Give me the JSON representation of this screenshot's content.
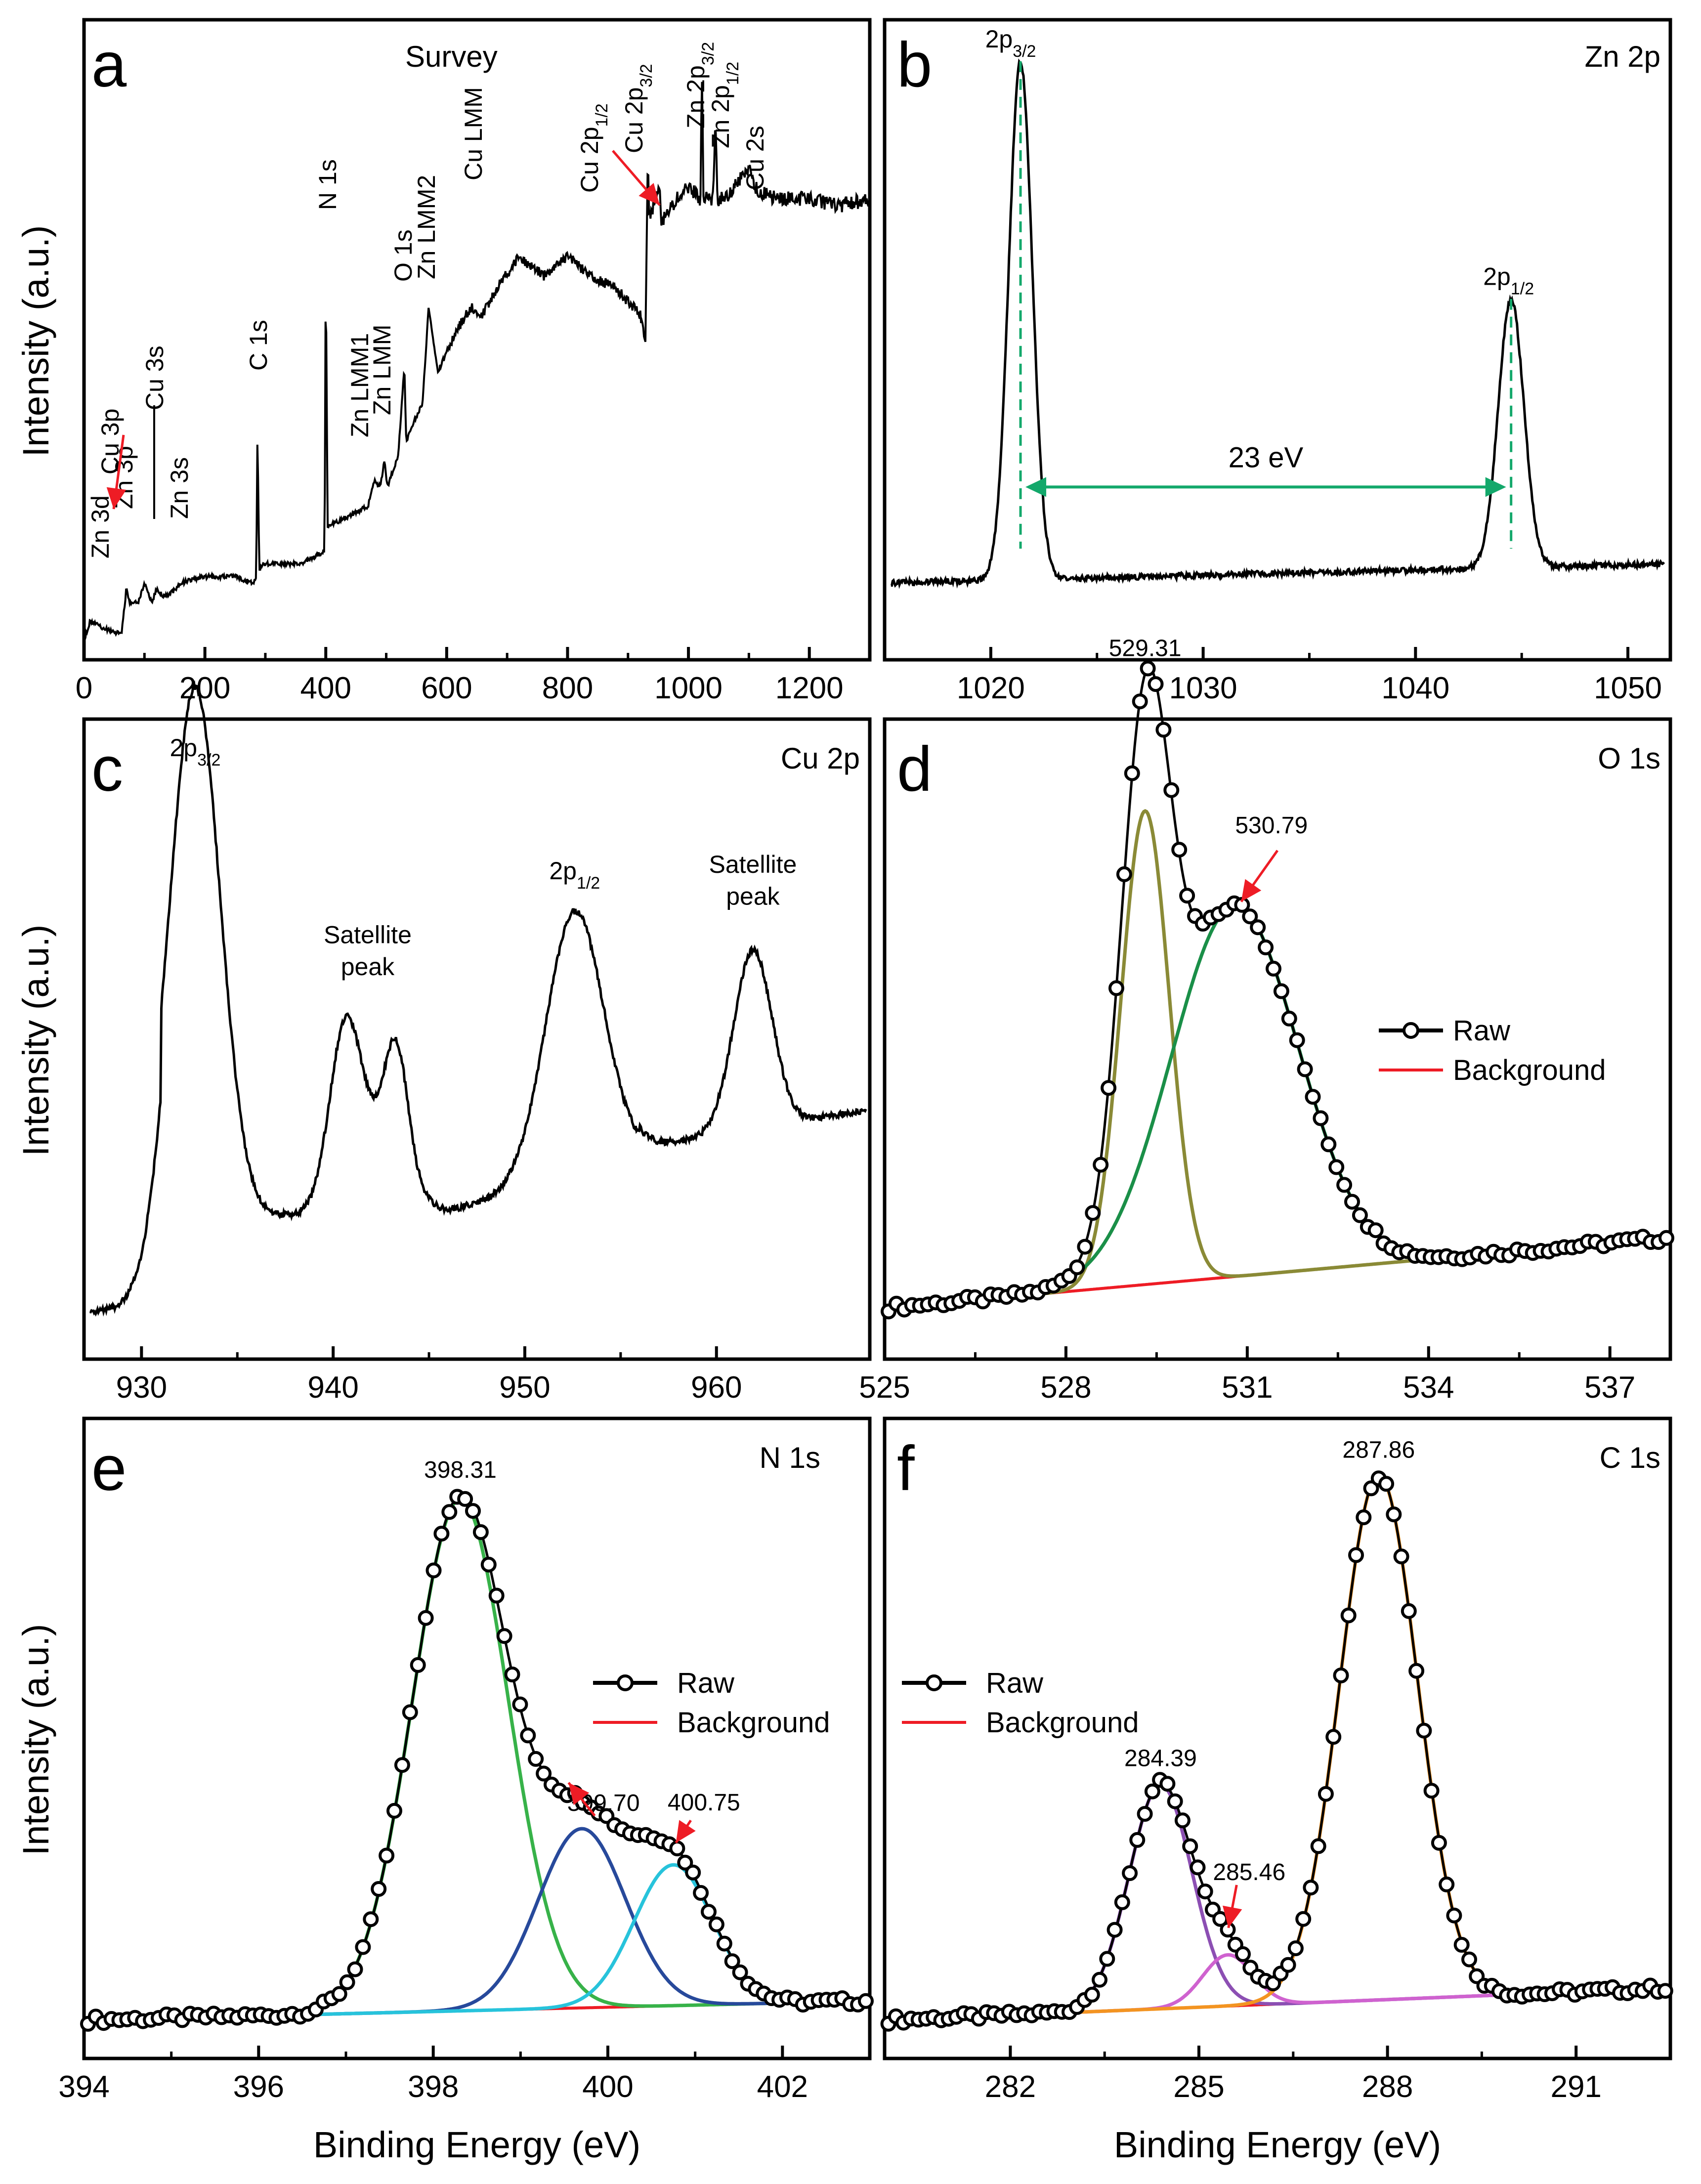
{
  "figure": {
    "ylabel": "Intensity (a.u.)",
    "xlabel": "Binding Energy (eV)"
  },
  "chart_data": [
    {
      "id": "a",
      "type": "line",
      "letter": "a",
      "title": "Survey",
      "xlabel": "",
      "ylabel": "Intensity (a.u.)",
      "xlim": [
        0,
        1300
      ],
      "xticks": [
        0,
        200,
        400,
        600,
        800,
        1000,
        1200
      ],
      "ylim": [
        0,
        100
      ],
      "anchors": [
        [
          0,
          3
        ],
        [
          10,
          6
        ],
        [
          30,
          5
        ],
        [
          62,
          4
        ],
        [
          70,
          11
        ],
        [
          75,
          9
        ],
        [
          90,
          9
        ],
        [
          100,
          12
        ],
        [
          112,
          9
        ],
        [
          120,
          11
        ],
        [
          130,
          10
        ],
        [
          140,
          10
        ],
        [
          160,
          12
        ],
        [
          200,
          13
        ],
        [
          250,
          13
        ],
        [
          280,
          12
        ],
        [
          285,
          13
        ],
        [
          287,
          36
        ],
        [
          290,
          14
        ],
        [
          295,
          15
        ],
        [
          320,
          15
        ],
        [
          360,
          15
        ],
        [
          398,
          17
        ],
        [
          400,
          62
        ],
        [
          403,
          21
        ],
        [
          430,
          22
        ],
        [
          470,
          24
        ],
        [
          480,
          28
        ],
        [
          490,
          27
        ],
        [
          497,
          31
        ],
        [
          502,
          27
        ],
        [
          520,
          32
        ],
        [
          530,
          46
        ],
        [
          533,
          34
        ],
        [
          545,
          37
        ],
        [
          560,
          40
        ],
        [
          570,
          55
        ],
        [
          585,
          45
        ],
        [
          600,
          48
        ],
        [
          620,
          52
        ],
        [
          640,
          55
        ],
        [
          660,
          54
        ],
        [
          690,
          59
        ],
        [
          720,
          63
        ],
        [
          760,
          60
        ],
        [
          800,
          63
        ],
        [
          840,
          60
        ],
        [
          880,
          58
        ],
        [
          920,
          54
        ],
        [
          929,
          50
        ],
        [
          933,
          80
        ],
        [
          935,
          69
        ],
        [
          952,
          74
        ],
        [
          955,
          68
        ],
        [
          980,
          72
        ],
        [
          1000,
          74
        ],
        [
          1020,
          72
        ],
        [
          1022,
          94
        ],
        [
          1025,
          72
        ],
        [
          1040,
          72
        ],
        [
          1045,
          84
        ],
        [
          1048,
          72
        ],
        [
          1070,
          73
        ],
        [
          1100,
          77
        ],
        [
          1115,
          73
        ],
        [
          1150,
          72
        ],
        [
          1200,
          72
        ],
        [
          1250,
          71
        ],
        [
          1300,
          72
        ]
      ],
      "peaks": [
        {
          "label": "Zn 3d",
          "x": 10
        },
        {
          "label": "Cu 3p",
          "x": 75
        },
        {
          "label": "Zn 3p",
          "x": 90
        },
        {
          "label": "Cu 3s",
          "x": 120
        },
        {
          "label": "Zn 3s",
          "x": 140
        },
        {
          "label": "C 1s",
          "x": 285
        },
        {
          "label": "N 1s",
          "x": 400
        },
        {
          "label": "Zn LMM1",
          "x": 475
        },
        {
          "label": "Zn LMM",
          "x": 497
        },
        {
          "label": "O 1s",
          "x": 530
        },
        {
          "label": "Zn LMM2",
          "x": 570
        },
        {
          "label": "Cu LMM",
          "x": 640
        },
        {
          "label": "Cu 2p1/2",
          "x": 952
        },
        {
          "label": "Cu 2p3/2",
          "x": 933
        },
        {
          "label": "Zn 2p3/2",
          "x": 1022
        },
        {
          "label": "Zn 2p1/2",
          "x": 1045
        },
        {
          "label": "Cu 2s",
          "x": 1100
        }
      ]
    },
    {
      "id": "b",
      "type": "line",
      "letter": "b",
      "title": "Zn 2p",
      "xlabel": "",
      "ylabel": "",
      "xlim": [
        1015,
        1052
      ],
      "xticks": [
        1020,
        1030,
        1040,
        1050
      ],
      "ylim": [
        0,
        100
      ],
      "components": [
        {
          "center": 1021.4,
          "height": 81,
          "width": 0.55
        },
        {
          "center": 1044.5,
          "height": 42,
          "width": 0.6
        }
      ],
      "baseline": [
        12,
        15
      ],
      "peaks": [
        {
          "label": "2p3/2",
          "x": 1021.4
        },
        {
          "label": "2p1/2",
          "x": 1044.5
        }
      ],
      "splitting": "23 eV"
    },
    {
      "id": "c",
      "type": "line",
      "letter": "c",
      "title": "Cu 2p",
      "xlabel": "",
      "ylabel": "Intensity (a.u.)",
      "xlim": [
        927,
        968
      ],
      "xticks": [
        930,
        940,
        950,
        960
      ],
      "ylim": [
        0,
        100
      ],
      "components": [
        {
          "center": 932.8,
          "height": 83,
          "width": 1.3
        },
        {
          "center": 940.6,
          "height": 24,
          "width": 0.8
        },
        {
          "center": 942.2,
          "height": 12,
          "width": 1.5
        },
        {
          "center": 943.3,
          "height": 18,
          "width": 0.6
        },
        {
          "center": 952.6,
          "height": 41,
          "width": 1.5
        },
        {
          "center": 961.9,
          "height": 28,
          "width": 1.0
        }
      ],
      "baseline": [
        7,
        40
      ],
      "annotations": [
        "2p3/2",
        "Satellite peak",
        "2p1/2",
        "Satellite peak"
      ]
    },
    {
      "id": "d",
      "type": "line",
      "letter": "d",
      "title": "O 1s",
      "xlabel": "",
      "ylabel": "",
      "xlim": [
        525,
        538
      ],
      "xticks": [
        525,
        528,
        531,
        534,
        537
      ],
      "ylim": [
        0,
        100
      ],
      "baseline": [
        8,
        19
      ],
      "components": [
        {
          "center": 529.31,
          "height": 74,
          "width": 0.4,
          "color": "#8a8a36"
        },
        {
          "center": 530.79,
          "height": 58,
          "width": 1.05,
          "color": "#1a8f48"
        }
      ],
      "peak_values": [
        "529.31",
        "530.79"
      ],
      "legend": {
        "raw": "Raw",
        "background": "Background"
      }
    },
    {
      "id": "e",
      "type": "line",
      "letter": "e",
      "title": "N 1s",
      "xlabel": "Binding Energy (eV)",
      "ylabel": "Intensity (a.u.)",
      "xlim": [
        394,
        403
      ],
      "xticks": [
        394,
        396,
        398,
        400,
        402
      ],
      "ylim": [
        0,
        100
      ],
      "baseline": [
        6,
        9
      ],
      "components": [
        {
          "center": 398.31,
          "height": 80,
          "width": 0.55,
          "color": "#37b249"
        },
        {
          "center": 399.7,
          "height": 28,
          "width": 0.5,
          "color": "#27499b"
        },
        {
          "center": 400.75,
          "height": 22,
          "width": 0.45,
          "color": "#27c3db"
        }
      ],
      "peak_values": [
        "398.31",
        "399.70",
        "400.75"
      ],
      "legend": {
        "raw": "Raw",
        "background": "Background"
      }
    },
    {
      "id": "f",
      "type": "line",
      "letter": "f",
      "title": "C 1s",
      "xlabel": "Binding Energy (eV)",
      "ylabel": "",
      "xlim": [
        280,
        292.5
      ],
      "xticks": [
        282,
        285,
        288,
        291
      ],
      "ylim": [
        0,
        100
      ],
      "baseline": [
        6,
        11
      ],
      "components": [
        {
          "center": 284.39,
          "height": 35,
          "width": 0.5,
          "color": "#8c4fb3"
        },
        {
          "center": 285.46,
          "height": 8,
          "width": 0.4,
          "color": "#cf62cf"
        },
        {
          "center": 287.86,
          "height": 82,
          "width": 0.62,
          "color": "#f39421"
        }
      ],
      "peak_values": [
        "284.39",
        "285.46",
        "287.86"
      ],
      "legend": {
        "raw": "Raw",
        "background": "Background"
      }
    }
  ]
}
